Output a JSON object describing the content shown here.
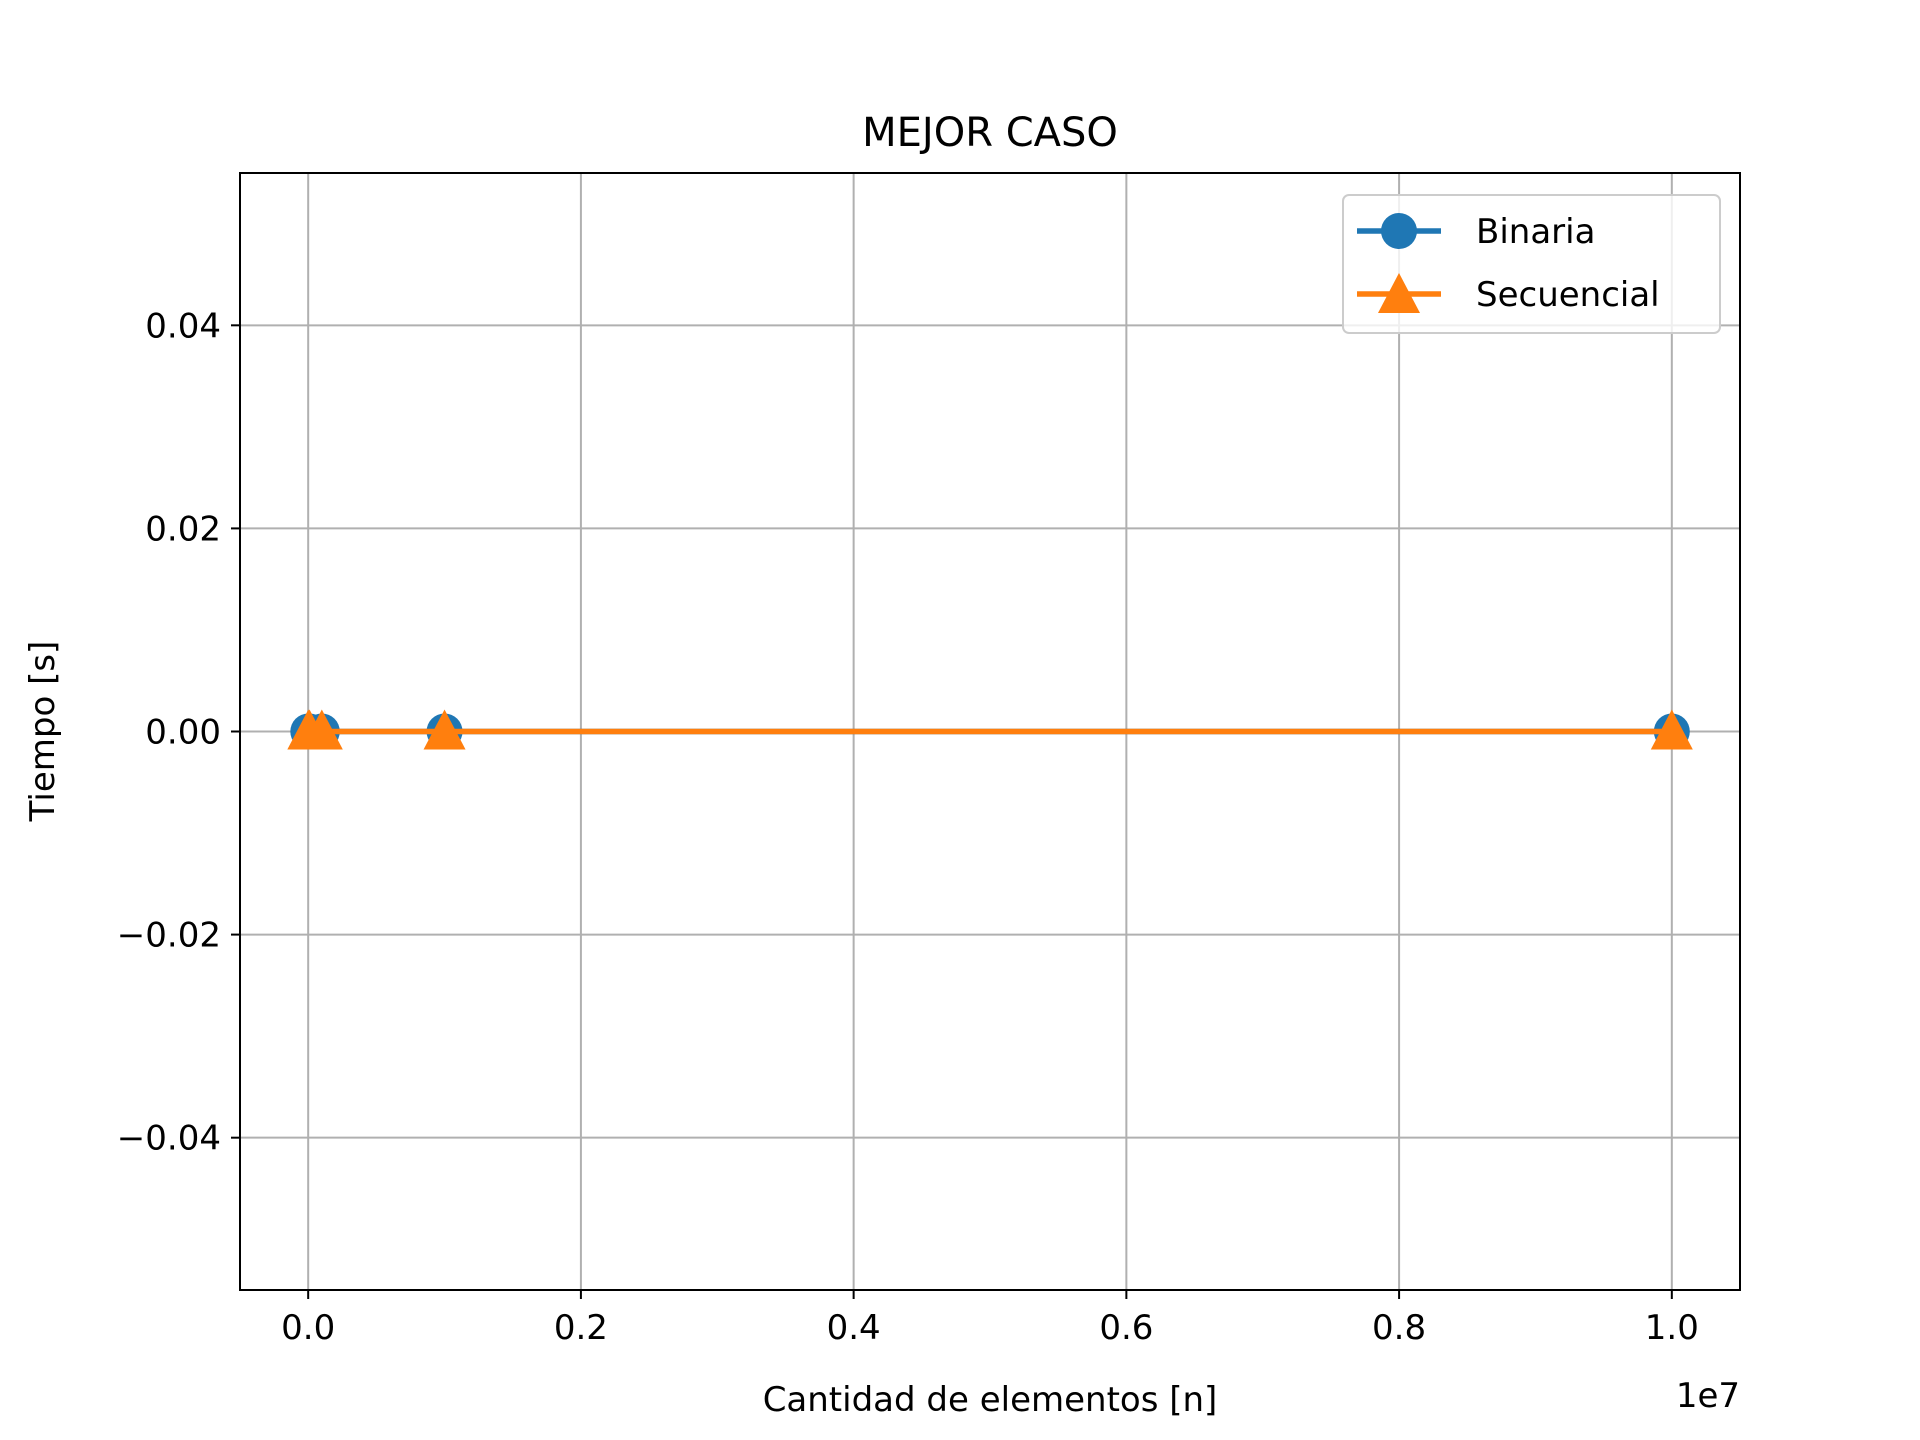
{
  "chart_data": {
    "type": "line",
    "title": "MEJOR CASO",
    "xlabel": "Cantidad de elementos [n]",
    "ylabel": "Tiempo [s]",
    "x_offset_label": "1e7",
    "xlim": [
      -0.05,
      1.05
    ],
    "ylim": [
      -0.055,
      0.055
    ],
    "x_ticks": [
      0.0,
      0.2,
      0.4,
      0.6,
      0.8,
      1.0
    ],
    "x_tick_labels": [
      "0.0",
      "0.2",
      "0.4",
      "0.6",
      "0.8",
      "1.0"
    ],
    "y_ticks": [
      0.04,
      0.02,
      0.0,
      -0.02,
      -0.04
    ],
    "y_tick_labels": [
      "0.04",
      "0.02",
      "0.00",
      "−0.02",
      "−0.04"
    ],
    "grid": true,
    "legend_position": "top-right",
    "series": [
      {
        "name": "Binaria",
        "color": "#1f77b4",
        "marker": "circle",
        "x": [
          0.0001,
          0.001,
          0.01,
          0.1,
          1.0
        ],
        "y": [
          0.0,
          0.0,
          0.0,
          0.0,
          0.0
        ]
      },
      {
        "name": "Secuencial",
        "color": "#ff7f0e",
        "marker": "triangle",
        "x": [
          0.0001,
          0.001,
          0.01,
          0.1,
          1.0
        ],
        "y": [
          0.0,
          0.0,
          0.0,
          0.0,
          0.0
        ]
      }
    ]
  }
}
